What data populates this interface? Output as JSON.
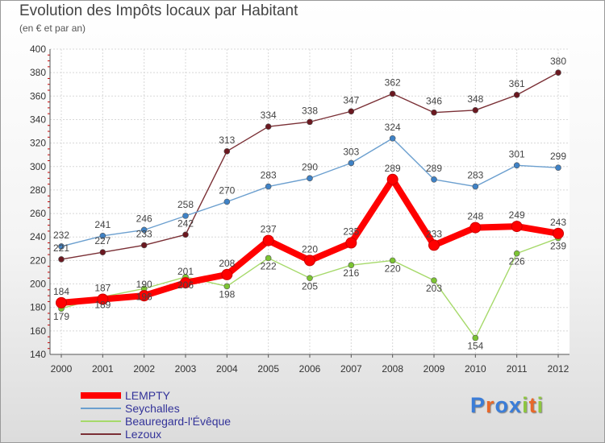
{
  "header": {
    "title": "Evolution des Impôts locaux par Habitant",
    "subtitle": "(en € et par an)"
  },
  "logo": {
    "text": "Proxiti",
    "letters": [
      "P",
      "r",
      "o",
      "x",
      "i",
      "t",
      "i"
    ],
    "colors": [
      "#3b7dd8",
      "#e8682a",
      "#3b7dd8",
      "#3b7dd8",
      "#8ec63f",
      "#e8682a",
      "#8ec63f"
    ]
  },
  "chart_data": {
    "type": "line",
    "title": "Evolution des Impôts locaux par Habitant",
    "ylabel": "(en € et par an)",
    "xlabel": "",
    "x": [
      "2000",
      "2001",
      "2002",
      "2003",
      "2004",
      "2005",
      "2006",
      "2007",
      "2008",
      "2009",
      "2010",
      "2011",
      "2012"
    ],
    "ylim": [
      140,
      400
    ],
    "yticks": [
      "140",
      "160",
      "180",
      "200",
      "220",
      "240",
      "260",
      "280",
      "300",
      "320",
      "340",
      "360",
      "380",
      "400"
    ],
    "grid": true,
    "legend_position": "bottom-left",
    "series": [
      {
        "name": "LEMPTY",
        "color": "#ff0000",
        "marker_color": "#ff0000",
        "values": [
          184,
          187,
          190,
          201,
          208,
          237,
          220,
          235,
          289,
          233,
          248,
          249,
          243
        ]
      },
      {
        "name": "Seychalles",
        "color": "#6b9fcf",
        "marker_color": "#3f82c6",
        "values": [
          232,
          241,
          246,
          258,
          270,
          283,
          290,
          303,
          324,
          289,
          283,
          301,
          299
        ]
      },
      {
        "name": "Beauregard-l'Évêque",
        "color": "#a6d96a",
        "marker_color": "#7cc433",
        "values": [
          179,
          189,
          196,
          206,
          198,
          222,
          205,
          216,
          220,
          203,
          154,
          226,
          239
        ]
      },
      {
        "name": "Lezoux",
        "color": "#7a2f35",
        "marker_color": "#6b1820",
        "values": [
          221,
          227,
          233,
          242,
          313,
          334,
          338,
          347,
          362,
          346,
          348,
          361,
          380
        ]
      }
    ]
  }
}
